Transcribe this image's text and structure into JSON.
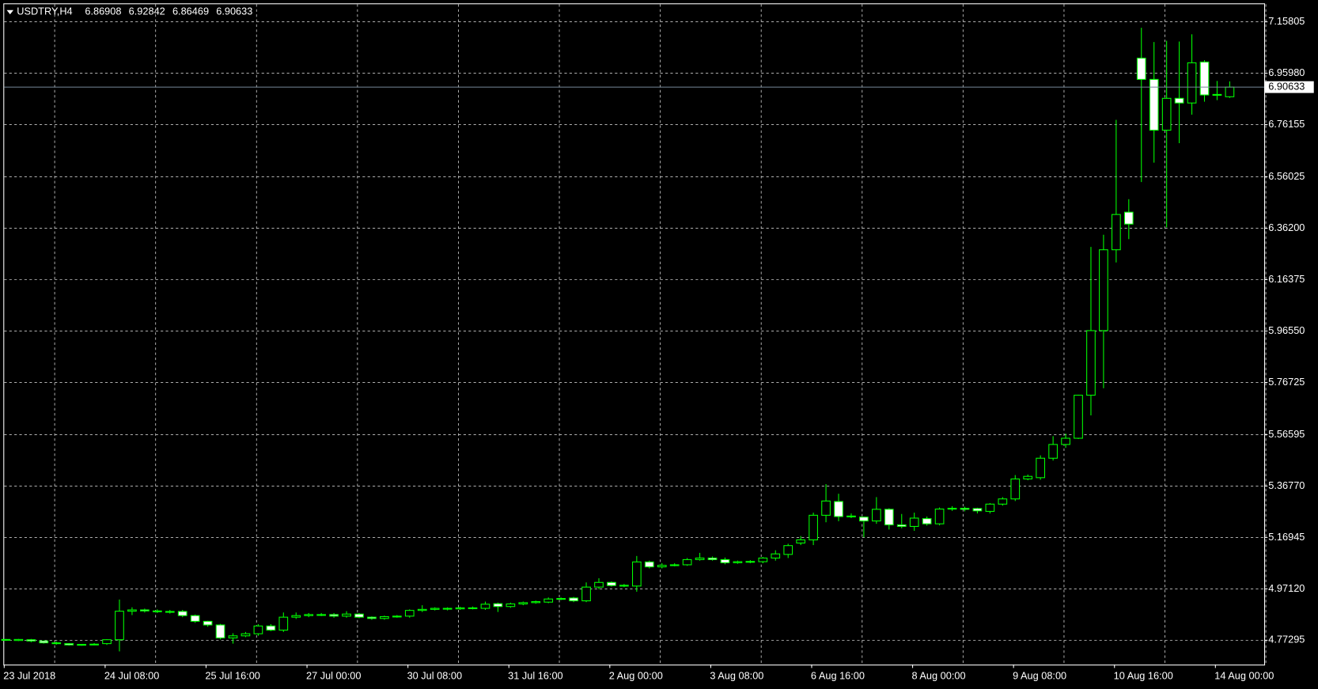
{
  "chart_data": {
    "type": "candlestick",
    "title": "USDTRY,H4",
    "last_bar": {
      "open": 6.86908,
      "high": 6.92842,
      "low": 6.86469,
      "close": 6.90633
    },
    "last_price": 6.90633,
    "categories": [
      "23 Jul 2018",
      null,
      null,
      null,
      null,
      null,
      null,
      null,
      "24 Jul 08:00",
      null,
      null,
      null,
      null,
      null,
      null,
      null,
      "25 Jul 16:00",
      null,
      null,
      null,
      null,
      null,
      null,
      null,
      "27 Jul 00:00",
      null,
      null,
      null,
      null,
      null,
      null,
      null,
      "30 Jul 08:00",
      null,
      null,
      null,
      null,
      null,
      null,
      null,
      "31 Jul 16:00",
      null,
      null,
      null,
      null,
      null,
      null,
      null,
      "2 Aug 00:00",
      null,
      null,
      null,
      null,
      null,
      null,
      null,
      "3 Aug 08:00",
      null,
      null,
      null,
      null,
      null,
      null,
      null,
      "6 Aug 16:00",
      null,
      null,
      null,
      null,
      null,
      null,
      null,
      "8 Aug 00:00",
      null,
      null,
      null,
      null,
      null,
      null,
      null,
      "9 Aug 08:00",
      null,
      null,
      null,
      null,
      null,
      null,
      null,
      "10 Aug 16:00",
      null,
      null,
      null,
      null,
      null,
      null,
      null,
      "14 Aug 00:00",
      null
    ],
    "open": [
      4.776,
      4.772,
      4.775,
      4.77,
      4.763,
      4.76,
      4.755,
      4.757,
      4.76,
      4.775,
      4.885,
      4.89,
      4.886,
      4.884,
      4.884,
      4.868,
      4.846,
      4.832,
      4.782,
      4.79,
      4.798,
      4.828,
      4.812,
      4.862,
      4.868,
      4.872,
      4.872,
      4.866,
      4.874,
      4.862,
      4.857,
      4.864,
      4.866,
      4.888,
      4.892,
      4.896,
      4.894,
      4.898,
      4.896,
      4.914,
      4.903,
      4.913,
      4.918,
      4.92,
      4.932,
      4.936,
      4.925,
      4.978,
      4.996,
      4.984,
      4.982,
      5.075,
      5.056,
      5.062,
      5.064,
      5.084,
      5.09,
      5.084,
      5.072,
      5.076,
      5.076,
      5.09,
      5.104,
      5.148,
      5.16,
      5.255,
      5.308,
      5.25,
      5.248,
      5.233,
      5.278,
      5.218,
      5.212,
      5.242,
      5.222,
      5.279,
      5.282,
      5.281,
      5.27,
      5.298,
      5.318,
      5.395,
      5.4,
      5.475,
      5.528,
      5.552,
      5.718,
      5.967,
      6.279,
      6.424,
      7.018,
      6.936,
      6.74,
      6.863,
      6.845,
      7.003,
      6.876,
      6.86908
    ],
    "high": [
      4.778,
      4.778,
      4.778,
      4.772,
      4.768,
      4.762,
      4.758,
      4.762,
      4.777,
      4.93,
      4.9,
      4.895,
      4.892,
      4.89,
      4.89,
      4.872,
      4.848,
      4.836,
      4.8,
      4.805,
      4.835,
      4.835,
      4.88,
      4.88,
      4.878,
      4.878,
      4.878,
      4.885,
      4.878,
      4.865,
      4.868,
      4.87,
      4.892,
      4.908,
      4.9,
      4.9,
      4.902,
      4.903,
      4.922,
      4.918,
      4.918,
      4.922,
      4.926,
      4.938,
      4.938,
      4.94,
      4.996,
      5.012,
      5.0,
      4.99,
      5.098,
      5.08,
      5.07,
      5.07,
      5.09,
      5.11,
      5.096,
      5.092,
      5.08,
      5.082,
      5.094,
      5.12,
      5.145,
      5.175,
      5.265,
      5.375,
      5.338,
      5.262,
      5.25,
      5.325,
      5.282,
      5.26,
      5.265,
      5.25,
      5.285,
      5.29,
      5.288,
      5.284,
      5.302,
      5.325,
      5.41,
      5.412,
      5.486,
      5.56,
      5.57,
      5.72,
      6.29,
      6.337,
      6.78,
      6.474,
      7.135,
      7.08,
      7.085,
      7.082,
      7.11,
      7.01,
      6.93,
      6.92842
    ],
    "low": [
      4.772,
      4.77,
      4.765,
      4.76,
      4.756,
      4.752,
      4.752,
      4.754,
      4.755,
      4.73,
      4.87,
      4.88,
      4.878,
      4.876,
      4.862,
      4.84,
      4.825,
      4.776,
      4.76,
      4.785,
      4.79,
      4.808,
      4.805,
      4.855,
      4.862,
      4.866,
      4.86,
      4.86,
      4.858,
      4.852,
      4.852,
      4.86,
      4.86,
      4.882,
      4.888,
      4.888,
      4.89,
      4.892,
      4.89,
      4.882,
      4.898,
      4.908,
      4.914,
      4.916,
      4.928,
      4.92,
      4.92,
      4.97,
      4.98,
      4.978,
      4.96,
      5.05,
      5.05,
      5.058,
      5.06,
      5.08,
      5.08,
      5.066,
      5.068,
      5.07,
      5.07,
      5.08,
      5.09,
      5.14,
      5.14,
      5.228,
      5.232,
      5.244,
      5.17,
      5.222,
      5.2,
      5.205,
      5.195,
      5.215,
      5.216,
      5.272,
      5.27,
      5.262,
      5.262,
      5.292,
      5.31,
      5.39,
      5.392,
      5.466,
      5.515,
      5.549,
      5.64,
      5.745,
      6.23,
      6.32,
      6.54,
      6.615,
      6.365,
      6.69,
      6.8,
      6.85,
      6.856,
      6.86469
    ],
    "close": [
      4.775,
      4.776,
      4.77,
      4.763,
      4.76,
      4.755,
      4.757,
      4.758,
      4.775,
      4.885,
      4.89,
      4.886,
      4.884,
      4.882,
      4.868,
      4.846,
      4.832,
      4.782,
      4.79,
      4.798,
      4.828,
      4.812,
      4.862,
      4.868,
      4.872,
      4.872,
      4.866,
      4.874,
      4.862,
      4.857,
      4.864,
      4.866,
      4.888,
      4.892,
      4.896,
      4.894,
      4.898,
      4.898,
      4.912,
      4.903,
      4.913,
      4.918,
      4.922,
      4.932,
      4.934,
      4.925,
      4.978,
      4.996,
      4.984,
      4.985,
      5.075,
      5.056,
      5.062,
      5.064,
      5.084,
      5.09,
      5.084,
      5.072,
      5.076,
      5.077,
      5.09,
      5.106,
      5.138,
      5.16,
      5.255,
      5.31,
      5.25,
      5.252,
      5.233,
      5.278,
      5.218,
      5.212,
      5.244,
      5.222,
      5.279,
      5.282,
      5.278,
      5.272,
      5.298,
      5.318,
      5.395,
      5.405,
      5.475,
      5.528,
      5.552,
      5.718,
      5.967,
      6.279,
      6.415,
      6.378,
      6.936,
      6.74,
      6.863,
      6.845,
      7.0,
      6.876,
      6.878,
      6.90633
    ],
    "ylim": [
      4.679,
      7.226
    ],
    "yticks": [
      {
        "value": 4.77295,
        "label": "4.77295"
      },
      {
        "value": 4.9712,
        "label": "4.97120"
      },
      {
        "value": 5.16945,
        "label": "5.16945"
      },
      {
        "value": 5.3677,
        "label": "5.36770"
      },
      {
        "value": 5.56595,
        "label": "5.56595"
      },
      {
        "value": 5.76725,
        "label": "5.76725"
      },
      {
        "value": 5.9655,
        "label": "5.96550"
      },
      {
        "value": 6.16375,
        "label": "6.16375"
      },
      {
        "value": 6.362,
        "label": "6.36200"
      },
      {
        "value": 6.56025,
        "label": "6.56025"
      },
      {
        "value": 6.76155,
        "label": "6.76155"
      },
      {
        "value": 6.9598,
        "label": "6.95980"
      },
      {
        "value": 7.15805,
        "label": "7.15805"
      }
    ],
    "grid": true,
    "color": "#00ff00"
  }
}
